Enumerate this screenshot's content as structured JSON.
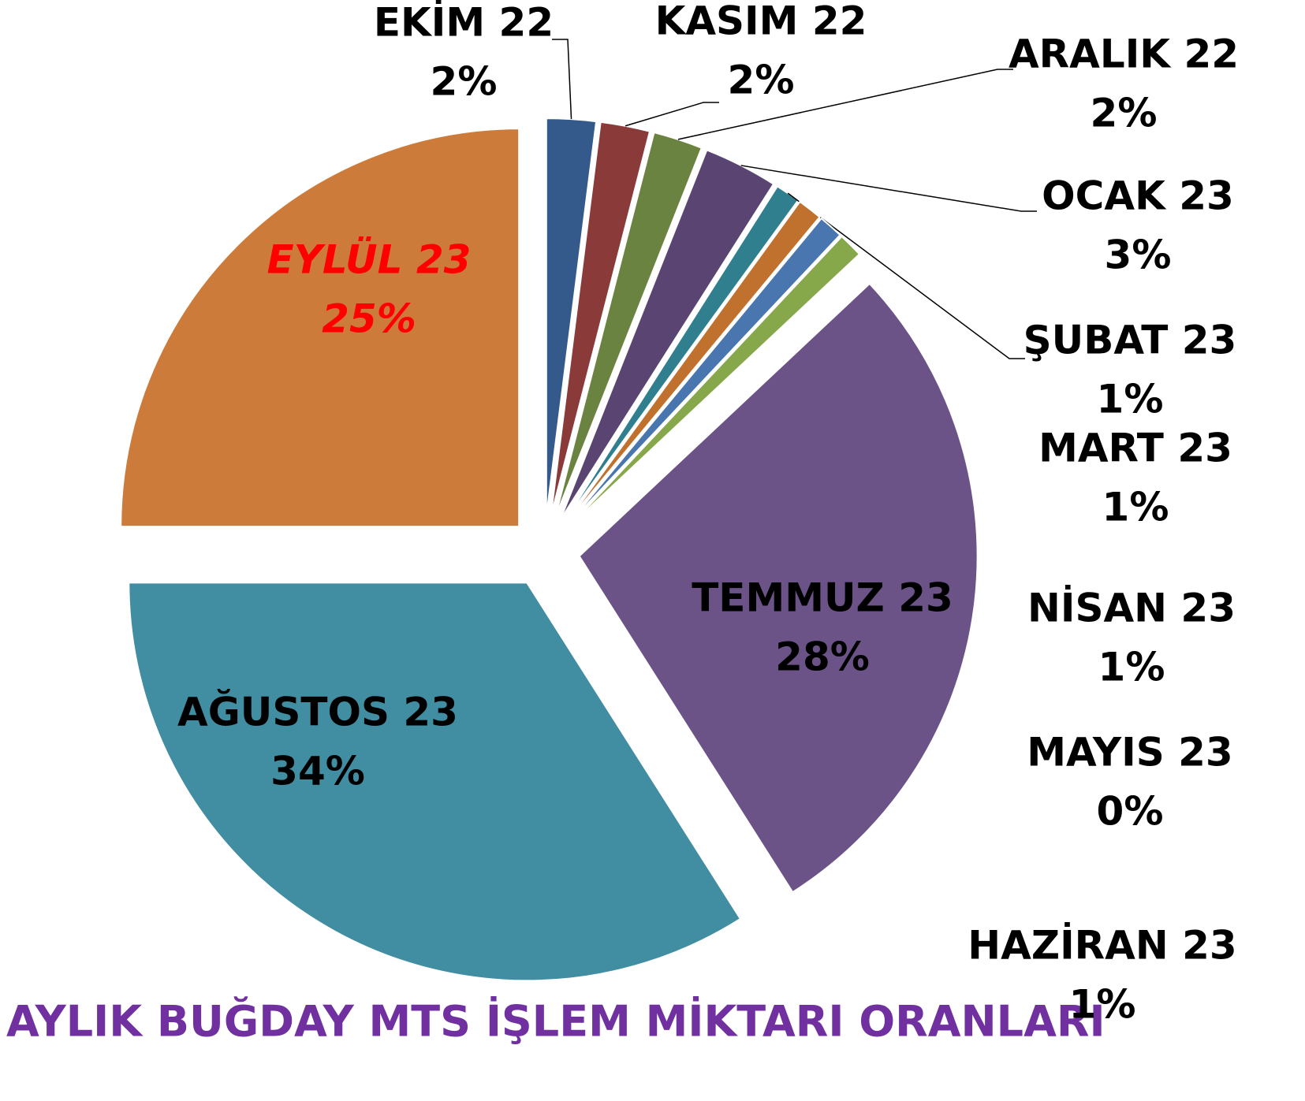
{
  "chart_data": {
    "type": "pie",
    "title": "AYLIK BUĞDAY MTS İŞLEM MİKTARI ORANLARI",
    "categories": [
      "EKİM 22",
      "KASIM 22",
      "ARALIK 22",
      "OCAK 23",
      "ŞUBAT 23",
      "MART 23",
      "NİSAN 23",
      "MAYIS 23",
      "HAZİRAN 23",
      "TEMMUZ 23",
      "AĞUSTOS 23",
      "EYLÜL 23"
    ],
    "values": [
      2,
      2,
      2,
      3,
      1,
      1,
      1,
      0,
      1,
      28,
      34,
      25
    ],
    "value_labels": [
      "2%",
      "2%",
      "2%",
      "3%",
      "1%",
      "1%",
      "1%",
      "0%",
      "1%",
      "28%",
      "34%",
      "25%"
    ],
    "colors": [
      "#335a8a",
      "#8b3a3a",
      "#6b8340",
      "#5a4572",
      "#2f7f8f",
      "#c0712e",
      "#4a76b0",
      "#b04040",
      "#86a84a",
      "#6b5388",
      "#418da2",
      "#cd7b3a"
    ]
  }
}
